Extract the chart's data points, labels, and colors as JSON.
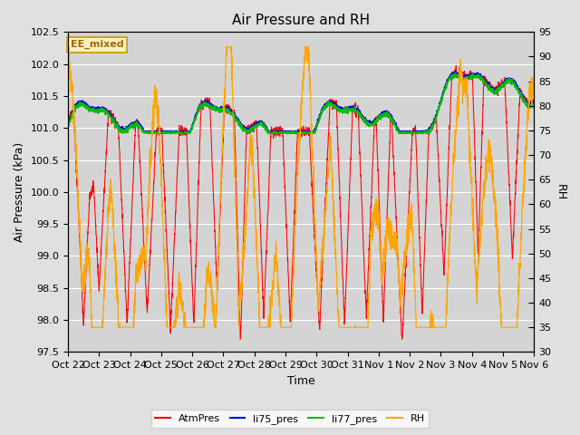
{
  "title": "Air Pressure and RH",
  "xlabel": "Time",
  "ylabel_left": "Air Pressure (kPa)",
  "ylabel_right": "RH",
  "ylim_left": [
    97.5,
    102.5
  ],
  "ylim_right": [
    30,
    95
  ],
  "yticks_left": [
    97.5,
    98.0,
    98.5,
    99.0,
    99.5,
    100.0,
    100.5,
    101.0,
    101.5,
    102.0,
    102.5
  ],
  "yticks_right": [
    30,
    35,
    40,
    45,
    50,
    55,
    60,
    65,
    70,
    75,
    80,
    85,
    90,
    95
  ],
  "xtick_labels": [
    "Oct 22",
    "Oct 23",
    "Oct 24",
    "Oct 25",
    "Oct 26",
    "Oct 27",
    "Oct 28",
    "Oct 29",
    "Oct 30",
    "Oct 31",
    "Nov 1",
    "Nov 2",
    "Nov 3",
    "Nov 4",
    "Nov 5",
    "Nov 6"
  ],
  "colors": {
    "AtmPres": "#FF0000",
    "li75_pres": "#0000EE",
    "li77_pres": "#00BB00",
    "RH": "#FFA500"
  },
  "legend_label": "EE_mixed",
  "background_color": "#E0E0E0",
  "plot_bg_color": "#D4D4D4",
  "grid_color": "#FFFFFF",
  "n_points": 3000,
  "total_days": 15
}
